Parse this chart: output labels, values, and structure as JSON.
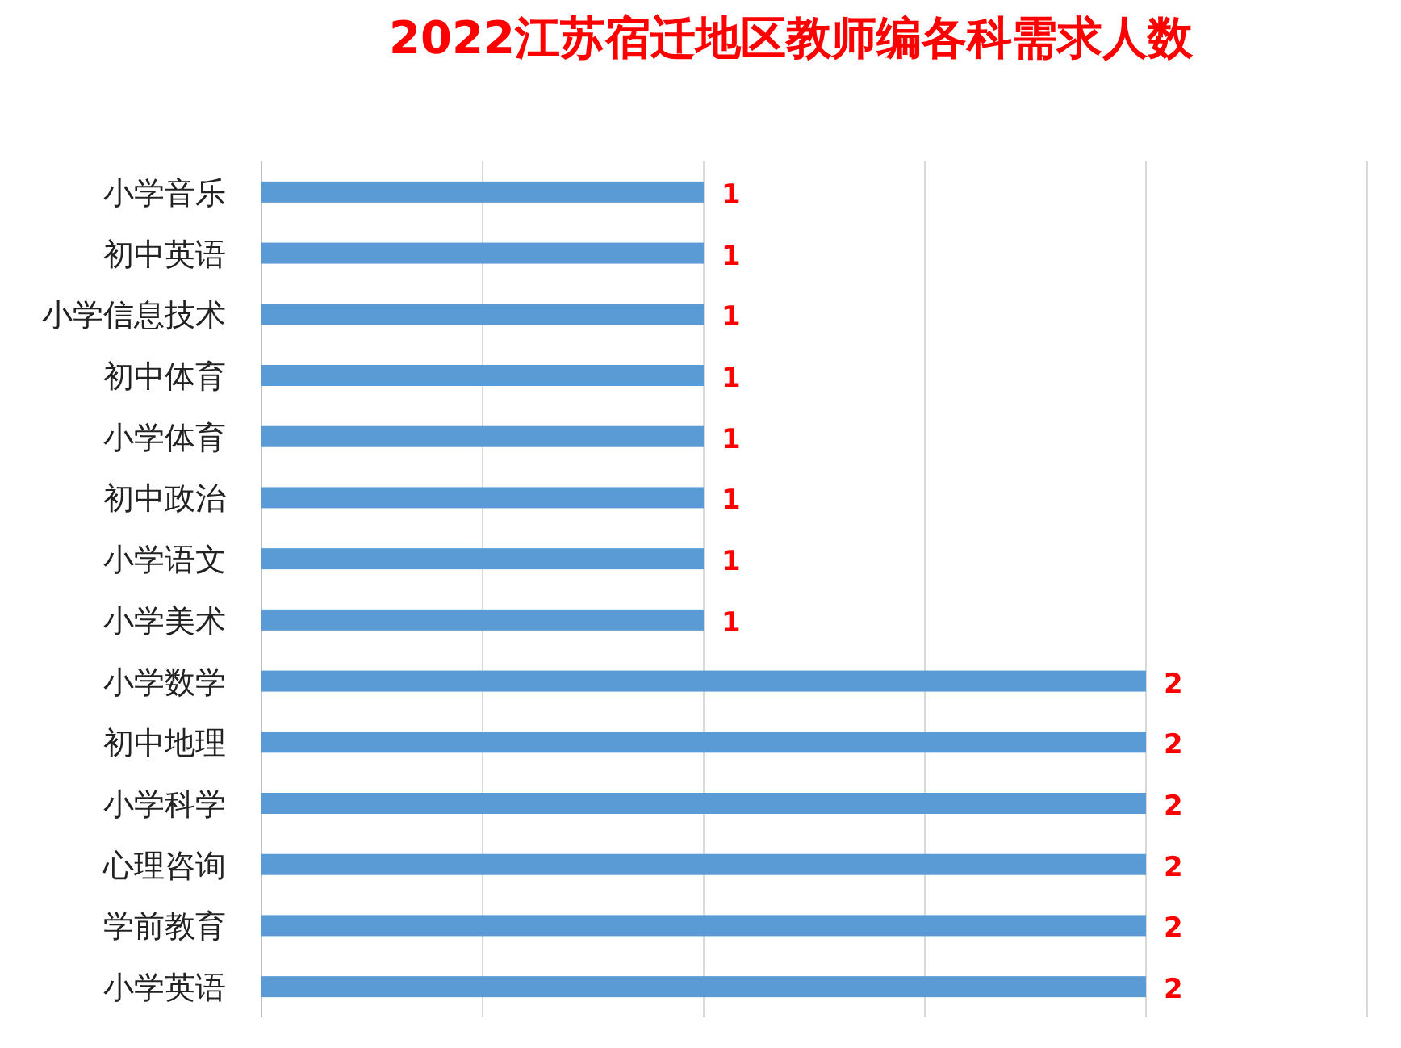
{
  "chart_data": {
    "type": "bar",
    "orientation": "horizontal",
    "title": "2022江苏宿迁地区教师编各科需求人数",
    "categories": [
      "小学音乐",
      "初中英语",
      "小学信息技术",
      "初中体育",
      "小学体育",
      "初中政治",
      "小学语文",
      "小学美术",
      "小学数学",
      "初中地理",
      "小学科学",
      "心理咨询",
      "学前教育",
      "小学英语"
    ],
    "values": [
      1,
      1,
      1,
      1,
      1,
      1,
      1,
      1,
      2,
      2,
      2,
      2,
      2,
      2
    ],
    "color": "#5b9bd5",
    "xlim": [
      0,
      2.5
    ],
    "xticks": [
      {
        "value": 0,
        "label": null
      },
      {
        "value": 0.5,
        "label": null
      },
      {
        "value": 1,
        "label": null
      },
      {
        "value": 1.5,
        "label": null
      },
      {
        "value": 2,
        "label": null
      },
      {
        "value": 2.5,
        "label": null
      }
    ],
    "grid": "x",
    "tick_labels": "y",
    "data_labels": true
  }
}
